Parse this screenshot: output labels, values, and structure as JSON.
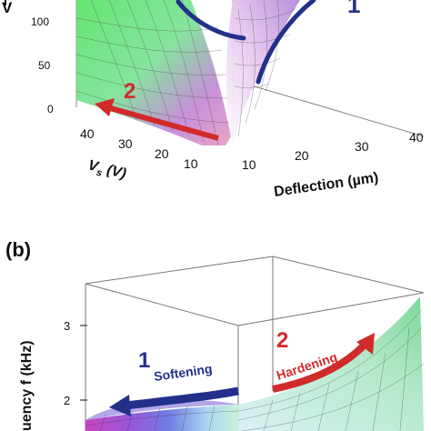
{
  "figure": {
    "top_panel": {
      "y_axis_label_fragment": "V",
      "y_ticks": [
        "100",
        "50",
        "0"
      ],
      "vs_axis_label": "V",
      "vs_axis_sub": "s",
      "vs_axis_unit": " (V)",
      "vs_ticks": [
        "40",
        "30",
        "20",
        "10"
      ],
      "deflection_axis_label": "Deflection (µm)",
      "deflection_ticks": [
        "10",
        "20",
        "30",
        "40"
      ],
      "arrow_1_label": "1",
      "arrow_2_label": "2",
      "colors": {
        "arrow_1": "#23308a",
        "arrow_2": "#d12a2a"
      }
    },
    "bottom_panel": {
      "panel_label": "(b)",
      "y_axis_label_fragment": "uency f (kHz)",
      "y_ticks": [
        "3",
        "2"
      ],
      "annotation_1_number": "1",
      "annotation_1_text": "Softening",
      "annotation_2_number": "2",
      "annotation_2_text": "Hardening",
      "colors": {
        "softening": "#23308a",
        "hardening": "#d12a2a"
      }
    }
  }
}
